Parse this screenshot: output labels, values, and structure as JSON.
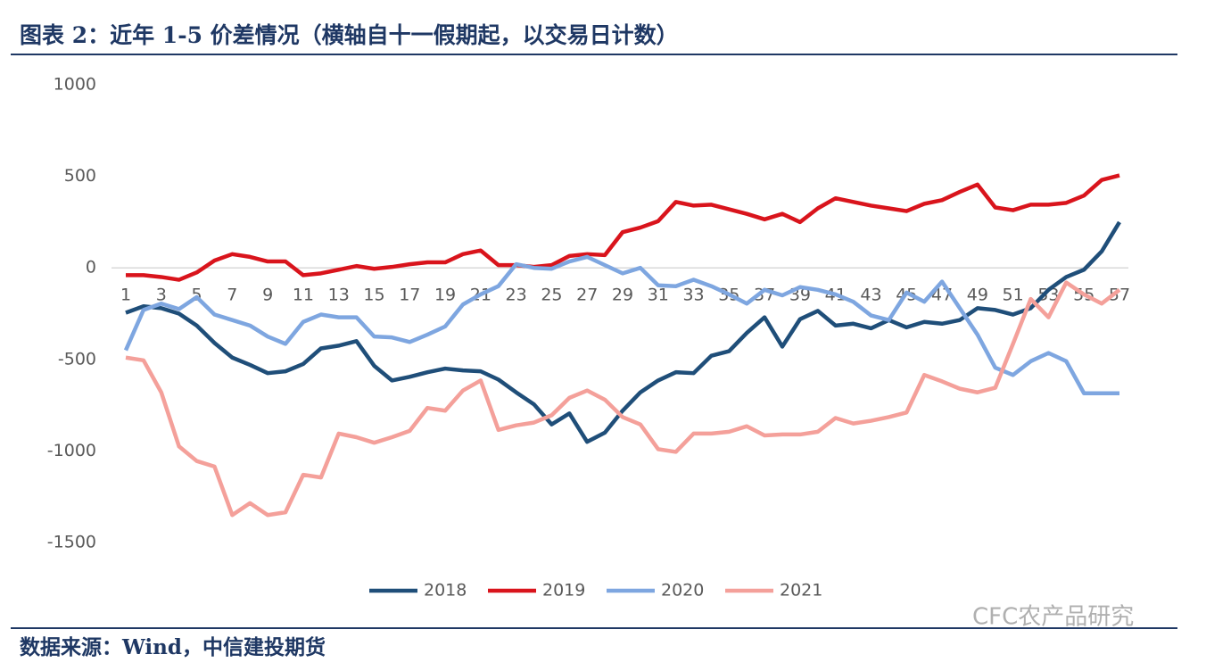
{
  "chart_data": {
    "type": "line",
    "title": "图表 2：近年 1-5 价差情况（横轴自十一假期起，以交易日计数）",
    "source": "数据来源：Wind，中信建投期货",
    "watermark": "CFC农产品研究",
    "categories": [
      "1",
      null,
      "3",
      null,
      "5",
      null,
      "7",
      null,
      "9",
      null,
      "11",
      null,
      "13",
      null,
      "15",
      null,
      "17",
      null,
      "19",
      null,
      "21",
      null,
      "23",
      null,
      "25",
      null,
      "27",
      null,
      "29",
      null,
      "31",
      null,
      "33",
      null,
      "35",
      null,
      "37",
      null,
      "39",
      null,
      "41",
      null,
      "43",
      null,
      "45",
      null,
      "47",
      null,
      "49",
      null,
      "51",
      null,
      "53",
      null,
      "55",
      null,
      "57"
    ],
    "ylim": [
      -1500,
      1000
    ],
    "yticks": [
      -1500,
      -1000,
      -500,
      0,
      500,
      1000
    ],
    "legend": "bottom",
    "series": [
      {
        "name": "2018",
        "color": "#1f4e79",
        "values": [
          -245,
          -210,
          -220,
          -250,
          -315,
          -410,
          -490,
          -530,
          -575,
          -565,
          -525,
          -440,
          -425,
          -400,
          -535,
          -615,
          -595,
          -570,
          -550,
          -560,
          -565,
          -610,
          -680,
          -745,
          -855,
          -795,
          -950,
          -900,
          -780,
          -680,
          -615,
          -570,
          -575,
          -480,
          -455,
          -355,
          -270,
          -430,
          -280,
          -235,
          -315,
          -305,
          -330,
          -285,
          -325,
          -295,
          -305,
          -285,
          -220,
          -230,
          -255,
          -220,
          -120,
          -50,
          -10,
          90,
          250
        ]
      },
      {
        "name": "2019",
        "color": "#d9141c",
        "values": [
          -40,
          -40,
          -50,
          -65,
          -25,
          40,
          75,
          60,
          35,
          35,
          -40,
          -30,
          -10,
          10,
          -5,
          5,
          20,
          30,
          30,
          75,
          95,
          15,
          15,
          5,
          15,
          65,
          75,
          70,
          195,
          220,
          255,
          360,
          340,
          345,
          320,
          295,
          265,
          295,
          250,
          325,
          380,
          360,
          340,
          325,
          310,
          350,
          370,
          415,
          455,
          330,
          315,
          345,
          345,
          355,
          395,
          480,
          505
        ]
      },
      {
        "name": "2020",
        "color": "#7ea6e0",
        "values": [
          -450,
          -230,
          -195,
          -225,
          -160,
          -255,
          -285,
          -315,
          -375,
          -415,
          -295,
          -255,
          -270,
          -270,
          -375,
          -380,
          -405,
          -365,
          -320,
          -200,
          -145,
          -100,
          20,
          0,
          -5,
          35,
          60,
          15,
          -30,
          0,
          -95,
          -100,
          -65,
          -100,
          -145,
          -195,
          -120,
          -150,
          -105,
          -120,
          -145,
          -185,
          -260,
          -285,
          -135,
          -185,
          -75,
          -220,
          -365,
          -545,
          -585,
          -510,
          -465,
          -510,
          -685,
          -685,
          -685
        ]
      },
      {
        "name": "2021",
        "color": "#f4a09a",
        "values": [
          -490,
          -505,
          -680,
          -975,
          -1055,
          -1085,
          -1350,
          -1285,
          -1350,
          -1335,
          -1130,
          -1145,
          -905,
          -925,
          -955,
          -925,
          -890,
          -765,
          -780,
          -670,
          -615,
          -885,
          -860,
          -845,
          -805,
          -710,
          -670,
          -720,
          -815,
          -855,
          -990,
          -1005,
          -905,
          -905,
          -895,
          -865,
          -915,
          -910,
          -910,
          -895,
          -820,
          -850,
          -835,
          -815,
          -790,
          -585,
          -620,
          -660,
          -680,
          -655,
          -415,
          -170,
          -270,
          -80,
          -145,
          -195,
          -120
        ]
      }
    ]
  }
}
